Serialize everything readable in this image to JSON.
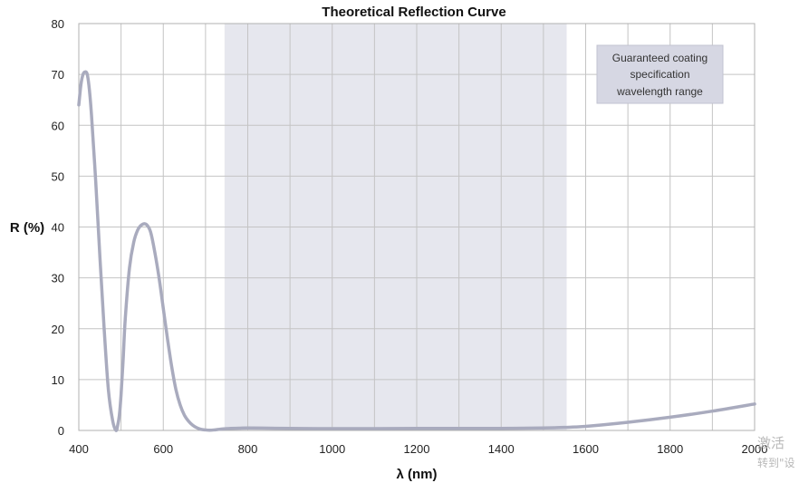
{
  "chart_data": {
    "type": "line",
    "title": "Theoretical Reflection Curve",
    "xlabel": "λ (nm)",
    "ylabel": "R (%)",
    "xlim": [
      400,
      2000
    ],
    "ylim": [
      0,
      80
    ],
    "xticks": [
      400,
      600,
      800,
      1000,
      1200,
      1400,
      1600,
      1800,
      2000
    ],
    "yticks": [
      0,
      10,
      20,
      30,
      40,
      50,
      60,
      70,
      80
    ],
    "grid": true,
    "band": {
      "x0": 745,
      "x1": 1555,
      "label": "Guaranteed coating specification wavelength range"
    },
    "band_label_lines": [
      "Guaranteed coating",
      "specification",
      "wavelength range"
    ],
    "series": [
      {
        "color": "#a9abbe",
        "x": [
          400,
          405,
          410,
          415,
          420,
          425,
          430,
          440,
          450,
          460,
          470,
          480,
          488,
          492,
          496,
          500,
          505,
          510,
          520,
          530,
          540,
          550,
          560,
          570,
          580,
          590,
          600,
          610,
          620,
          630,
          640,
          650,
          660,
          670,
          680,
          690,
          700,
          710,
          720,
          730,
          740,
          750,
          760,
          780,
          800,
          850,
          900,
          1000,
          1100,
          1200,
          1300,
          1400,
          1500,
          1550,
          1600,
          1700,
          1800,
          1900,
          2000
        ],
        "y": [
          64,
          68,
          70,
          70.5,
          70,
          67,
          62,
          49,
          34,
          20,
          8,
          2,
          0,
          1,
          3,
          7,
          14,
          22,
          32,
          37,
          39.5,
          40.5,
          40.5,
          39,
          35,
          30,
          24,
          18,
          12.5,
          8,
          5,
          3,
          1.8,
          1,
          0.5,
          0.2,
          0.1,
          0.05,
          0.1,
          0.2,
          0.3,
          0.35,
          0.4,
          0.45,
          0.5,
          0.45,
          0.4,
          0.35,
          0.35,
          0.4,
          0.4,
          0.4,
          0.5,
          0.6,
          0.8,
          1.6,
          2.6,
          3.8,
          5.2
        ]
      }
    ]
  },
  "watermark": {
    "line1": "激活",
    "line2": "转到\"设"
  }
}
